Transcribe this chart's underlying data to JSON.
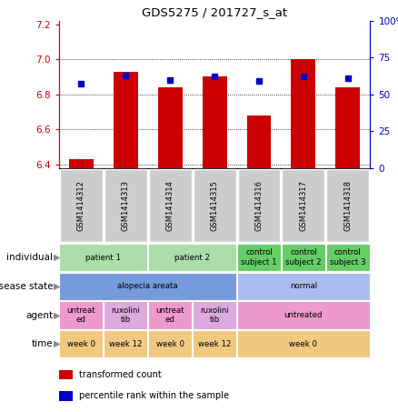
{
  "title": "GDS5275 / 201727_s_at",
  "samples": [
    "GSM1414312",
    "GSM1414313",
    "GSM1414314",
    "GSM1414315",
    "GSM1414316",
    "GSM1414317",
    "GSM1414318"
  ],
  "transformed_count": [
    6.43,
    6.93,
    6.84,
    6.9,
    6.68,
    7.0,
    6.84
  ],
  "percentile_rank": [
    57,
    63,
    60,
    62,
    59,
    62,
    61
  ],
  "ylim_left": [
    6.38,
    7.22
  ],
  "ylim_right": [
    0,
    100
  ],
  "yticks_left": [
    6.4,
    6.6,
    6.8,
    7.0,
    7.2
  ],
  "yticks_right": [
    0,
    25,
    50,
    75,
    100
  ],
  "ytick_labels_right": [
    "0",
    "25",
    "50",
    "75",
    "100%"
  ],
  "bar_color": "#cc0000",
  "dot_color": "#0000cc",
  "annotation_rows": [
    {
      "label": "individual",
      "cells": [
        {
          "text": "patient 1",
          "colspan": 2,
          "color": "#aaddaa"
        },
        {
          "text": "patient 2",
          "colspan": 2,
          "color": "#aaddaa"
        },
        {
          "text": "control\nsubject 1",
          "colspan": 1,
          "color": "#66cc66"
        },
        {
          "text": "control\nsubject 2",
          "colspan": 1,
          "color": "#66cc66"
        },
        {
          "text": "control\nsubject 3",
          "colspan": 1,
          "color": "#66cc66"
        }
      ]
    },
    {
      "label": "disease state",
      "cells": [
        {
          "text": "alopecia areata",
          "colspan": 4,
          "color": "#7799dd"
        },
        {
          "text": "normal",
          "colspan": 3,
          "color": "#aabbee"
        }
      ]
    },
    {
      "label": "agent",
      "cells": [
        {
          "text": "untreat\ned",
          "colspan": 1,
          "color": "#ee99cc"
        },
        {
          "text": "ruxolini\ntib",
          "colspan": 1,
          "color": "#ddaadd"
        },
        {
          "text": "untreat\ned",
          "colspan": 1,
          "color": "#ee99cc"
        },
        {
          "text": "ruxolini\ntib",
          "colspan": 1,
          "color": "#ddaadd"
        },
        {
          "text": "untreated",
          "colspan": 3,
          "color": "#ee99cc"
        }
      ]
    },
    {
      "label": "time",
      "cells": [
        {
          "text": "week 0",
          "colspan": 1,
          "color": "#f0c880"
        },
        {
          "text": "week 12",
          "colspan": 1,
          "color": "#f0c880"
        },
        {
          "text": "week 0",
          "colspan": 1,
          "color": "#f0c880"
        },
        {
          "text": "week 12",
          "colspan": 1,
          "color": "#f0c880"
        },
        {
          "text": "week 0",
          "colspan": 3,
          "color": "#f0c880"
        }
      ]
    }
  ],
  "legend_items": [
    {
      "color": "#cc0000",
      "label": "transformed count"
    },
    {
      "color": "#0000cc",
      "label": "percentile rank within the sample"
    }
  ],
  "gsm_box_color": "#cccccc",
  "arrow_color": "#888888"
}
